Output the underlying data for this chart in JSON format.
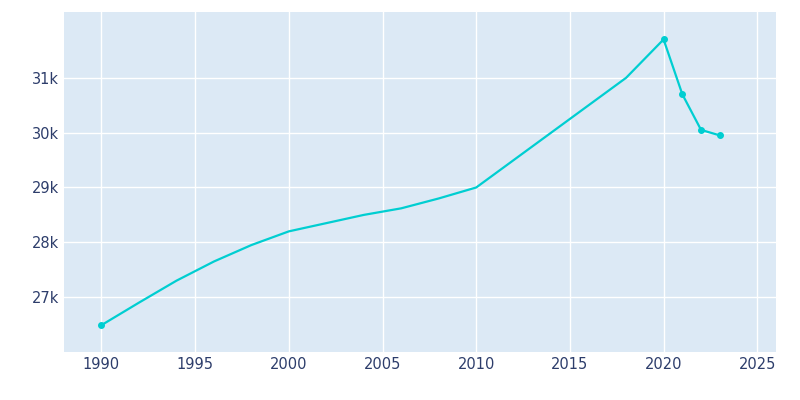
{
  "years": [
    1990,
    1992,
    1994,
    1996,
    1998,
    2000,
    2002,
    2004,
    2006,
    2008,
    2010,
    2012,
    2014,
    2016,
    2018,
    2020,
    2021,
    2022,
    2023
  ],
  "population": [
    26490,
    26900,
    27300,
    27650,
    27950,
    28200,
    28350,
    28500,
    28620,
    28800,
    29000,
    29500,
    30000,
    30500,
    31000,
    31700,
    30700,
    30050,
    29950
  ],
  "line_color": "#00CED1",
  "marker_years": [
    1990,
    2020,
    2021,
    2022,
    2023
  ],
  "marker_populations": [
    26490,
    31700,
    30700,
    30050,
    29950
  ],
  "marker_size": 4,
  "line_width": 1.6,
  "plot_bg_color": "#dce9f5",
  "fig_bg_color": "#ffffff",
  "grid_color": "#ffffff",
  "xlim": [
    1988,
    2026
  ],
  "ylim": [
    26000,
    32200
  ],
  "xticks": [
    1990,
    1995,
    2000,
    2005,
    2010,
    2015,
    2020,
    2025
  ],
  "ytick_values": [
    27000,
    28000,
    29000,
    30000,
    31000
  ],
  "ytick_labels": [
    "27k",
    "28k",
    "29k",
    "30k",
    "31k"
  ],
  "tick_color": "#2d3d6b",
  "tick_fontsize": 10.5
}
